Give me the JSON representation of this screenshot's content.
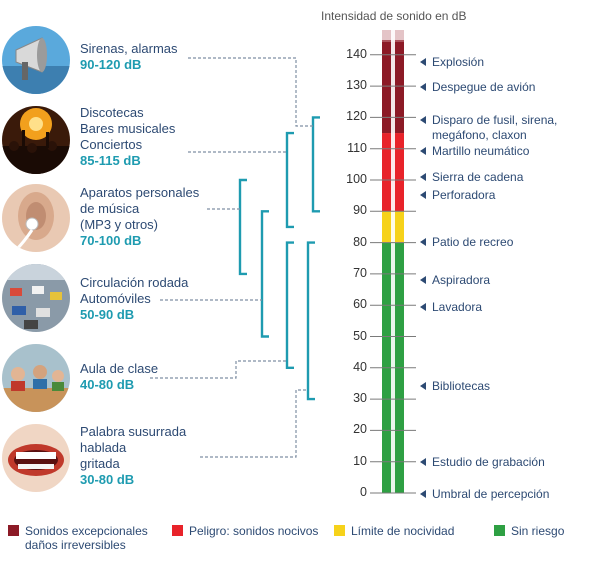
{
  "scale": {
    "title": "Intensidad de sonido en dB",
    "min": 0,
    "max": 140,
    "ticks": [
      "0",
      "10",
      "20",
      "30",
      "40",
      "50",
      "60",
      "70",
      "80",
      "90",
      "100",
      "110",
      "120",
      "130",
      "140"
    ]
  },
  "zones": [
    {
      "from": 0,
      "to": 80,
      "color": "#2ea043"
    },
    {
      "from": 80,
      "to": 90,
      "color": "#f6d21a"
    },
    {
      "from": 90,
      "to": 115,
      "color": "#e8232a"
    },
    {
      "from": 115,
      "to": 150,
      "color": "#8c1a26"
    }
  ],
  "annotations": [
    {
      "db": 140,
      "text": "Explosión"
    },
    {
      "db": 130,
      "text": "Despegue de avión"
    },
    {
      "db": 120,
      "text": "Disparo de fusil, sirena,",
      "text2": "megáfono, claxon"
    },
    {
      "db": 110,
      "text": "Martillo neumático"
    },
    {
      "db": 100,
      "text": "Sierra de cadena"
    },
    {
      "db": 95,
      "text": "Perforadora"
    },
    {
      "db": 80,
      "text": "Patio de recreo"
    },
    {
      "db": 70,
      "text": "Aspiradora"
    },
    {
      "db": 60,
      "text": "Lavadora"
    },
    {
      "db": 35,
      "text": "Bibliotecas"
    },
    {
      "db": 10,
      "text": "Estudio de grabación"
    },
    {
      "db": 0,
      "text": "Umbral de percepción"
    }
  ],
  "sources": [
    {
      "lines": [
        "Sirenas, alarmas"
      ],
      "range": "90-120 dB",
      "icon": "megaphone-icon",
      "min": 90,
      "max": 120
    },
    {
      "lines": [
        "Discotecas",
        "Bares musicales",
        "Conciertos"
      ],
      "range": "85-115 dB",
      "icon": "concert-icon",
      "min": 85,
      "max": 115
    },
    {
      "lines": [
        "Aparatos personales",
        "de música",
        "(MP3 y otros)"
      ],
      "range": "70-100 dB",
      "icon": "earphone-icon",
      "min": 70,
      "max": 100
    },
    {
      "lines": [
        "Circulación rodada",
        "Automóviles"
      ],
      "range": "50-90 dB",
      "icon": "traffic-icon",
      "min": 50,
      "max": 90
    },
    {
      "lines": [
        "Aula de clase"
      ],
      "range": "40-80 dB",
      "icon": "classroom-icon",
      "min": 40,
      "max": 80
    },
    {
      "lines": [
        "Palabra susurrada",
        "hablada",
        "gritada"
      ],
      "range": "30-80 dB",
      "icon": "mouth-icon",
      "min": 30,
      "max": 80
    }
  ],
  "legend": [
    {
      "text": "Sonidos excepcionales",
      "text2": "daños irreversibles",
      "color": "#8c1a26"
    },
    {
      "text": "Peligro: sonidos nocivos",
      "text2": "",
      "color": "#e8232a"
    },
    {
      "text": "Límite de nocividad",
      "text2": "",
      "color": "#f6d21a"
    },
    {
      "text": "Sin riesgo",
      "text2": "",
      "color": "#2ea043"
    }
  ],
  "colors": {
    "bracket": "#1e9bb0",
    "dotted": "#7f8fa3",
    "text": "#2d4a73"
  }
}
